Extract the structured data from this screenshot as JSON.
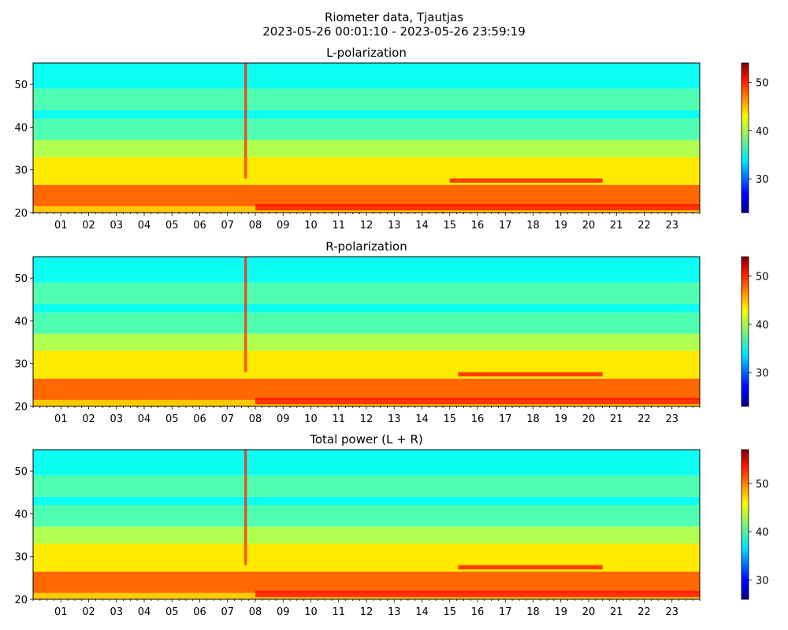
{
  "title_line1": "Riometer data, Tjautjas",
  "title_line2": "2023-05-26 00:01:10 - 2023-05-26 23:59:19",
  "chart_data": [
    {
      "type": "heatmap",
      "title": "L-polarization",
      "xlabel": "",
      "ylabel": "",
      "xlim": [
        0,
        24
      ],
      "ylim": [
        20,
        55
      ],
      "x_ticks": [
        "01",
        "02",
        "03",
        "04",
        "05",
        "06",
        "07",
        "08",
        "09",
        "10",
        "11",
        "12",
        "13",
        "14",
        "15",
        "16",
        "17",
        "18",
        "19",
        "20",
        "21",
        "22",
        "23"
      ],
      "y_ticks": [
        20,
        30,
        40,
        50
      ],
      "colorbar": {
        "range": [
          23,
          54
        ],
        "ticks": [
          30,
          40,
          50
        ],
        "colormap": "jet"
      },
      "bands": [
        {
          "y": [
            20,
            21.5
          ],
          "value": 44
        },
        {
          "y": [
            21.5,
            26.5
          ],
          "value": 47
        },
        {
          "y": [
            26.5,
            33
          ],
          "value": 43
        },
        {
          "y": [
            33,
            37
          ],
          "value": 40
        },
        {
          "y": [
            37,
            42
          ],
          "value": 37
        },
        {
          "y": [
            42,
            44
          ],
          "value": 35
        },
        {
          "y": [
            44,
            49
          ],
          "value": 37
        },
        {
          "y": [
            49,
            55
          ],
          "value": 35
        }
      ],
      "events": [
        {
          "x": [
            7.6,
            7.7
          ],
          "y": [
            28,
            55
          ],
          "value": 49
        },
        {
          "x": [
            15,
            20.5
          ],
          "y": [
            27,
            28
          ],
          "value": 50
        },
        {
          "x": [
            8,
            24
          ],
          "y": [
            20.5,
            22
          ],
          "value": 50
        }
      ]
    },
    {
      "type": "heatmap",
      "title": "R-polarization",
      "xlabel": "",
      "ylabel": "",
      "xlim": [
        0,
        24
      ],
      "ylim": [
        20,
        55
      ],
      "x_ticks": [
        "01",
        "02",
        "03",
        "04",
        "05",
        "06",
        "07",
        "08",
        "09",
        "10",
        "11",
        "12",
        "13",
        "14",
        "15",
        "16",
        "17",
        "18",
        "19",
        "20",
        "21",
        "22",
        "23"
      ],
      "y_ticks": [
        20,
        30,
        40,
        50
      ],
      "colorbar": {
        "range": [
          23,
          54
        ],
        "ticks": [
          30,
          40,
          50
        ],
        "colormap": "jet"
      },
      "bands": [
        {
          "y": [
            20,
            21.5
          ],
          "value": 44
        },
        {
          "y": [
            21.5,
            26.5
          ],
          "value": 47
        },
        {
          "y": [
            26.5,
            33
          ],
          "value": 43
        },
        {
          "y": [
            33,
            37
          ],
          "value": 40
        },
        {
          "y": [
            37,
            42
          ],
          "value": 37
        },
        {
          "y": [
            42,
            44
          ],
          "value": 35
        },
        {
          "y": [
            44,
            49
          ],
          "value": 37
        },
        {
          "y": [
            49,
            55
          ],
          "value": 35
        }
      ],
      "events": [
        {
          "x": [
            7.6,
            7.7
          ],
          "y": [
            28,
            55
          ],
          "value": 49
        },
        {
          "x": [
            15.3,
            20.5
          ],
          "y": [
            27,
            28
          ],
          "value": 50
        },
        {
          "x": [
            8,
            24
          ],
          "y": [
            20.5,
            22
          ],
          "value": 50
        }
      ]
    },
    {
      "type": "heatmap",
      "title": "Total power (L + R)",
      "xlabel": "",
      "ylabel": "",
      "xlim": [
        0,
        24
      ],
      "ylim": [
        20,
        55
      ],
      "x_ticks": [
        "01",
        "02",
        "03",
        "04",
        "05",
        "06",
        "07",
        "08",
        "09",
        "10",
        "11",
        "12",
        "13",
        "14",
        "15",
        "16",
        "17",
        "18",
        "19",
        "20",
        "21",
        "22",
        "23"
      ],
      "y_ticks": [
        20,
        30,
        40,
        50
      ],
      "colorbar": {
        "range": [
          26,
          57
        ],
        "ticks": [
          30,
          40,
          50
        ],
        "colormap": "jet"
      },
      "bands": [
        {
          "y": [
            20,
            21.5
          ],
          "value": 47
        },
        {
          "y": [
            21.5,
            26.5
          ],
          "value": 50
        },
        {
          "y": [
            26.5,
            33
          ],
          "value": 46
        },
        {
          "y": [
            33,
            37
          ],
          "value": 43
        },
        {
          "y": [
            37,
            42
          ],
          "value": 40
        },
        {
          "y": [
            42,
            44
          ],
          "value": 38
        },
        {
          "y": [
            44,
            49
          ],
          "value": 40
        },
        {
          "y": [
            49,
            55
          ],
          "value": 38
        }
      ],
      "events": [
        {
          "x": [
            7.6,
            7.7
          ],
          "y": [
            28,
            55
          ],
          "value": 52
        },
        {
          "x": [
            15.3,
            20.5
          ],
          "y": [
            27,
            28
          ],
          "value": 53
        },
        {
          "x": [
            8,
            24
          ],
          "y": [
            20.5,
            22
          ],
          "value": 53
        }
      ]
    }
  ]
}
